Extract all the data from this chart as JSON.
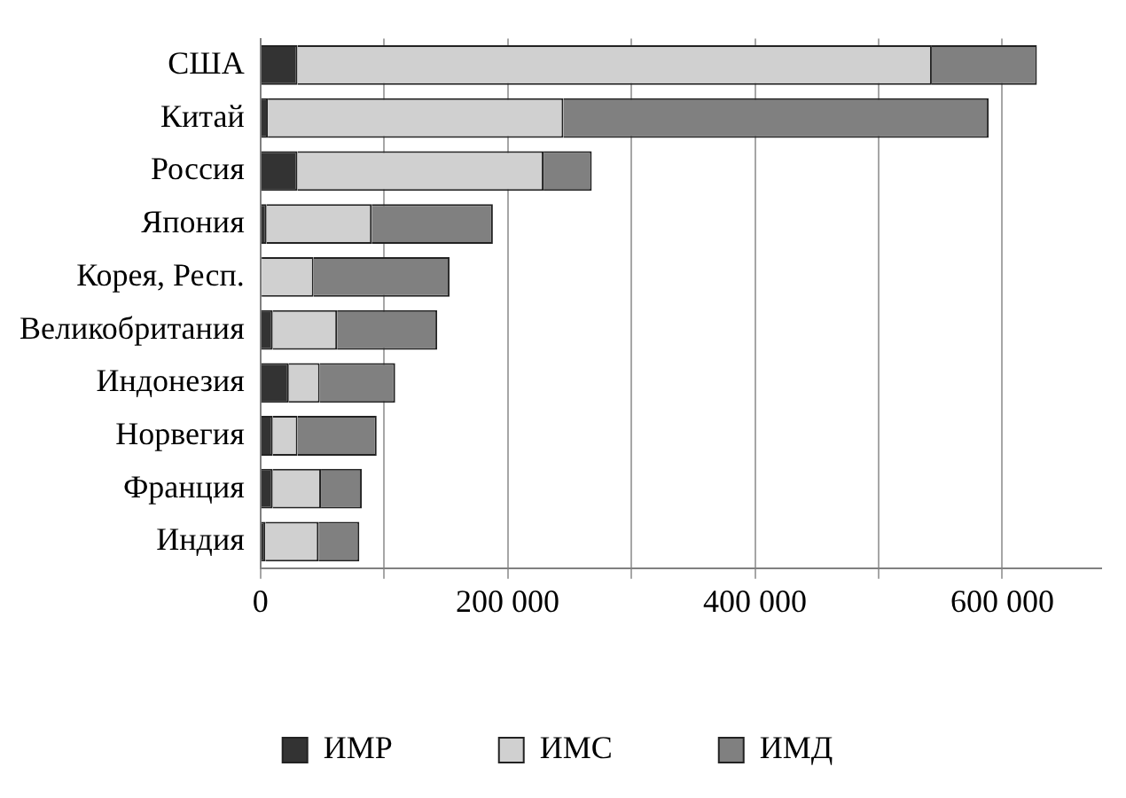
{
  "chart_data": {
    "type": "bar",
    "orientation": "horizontal",
    "stacked": true,
    "categories": [
      "США",
      "Китай",
      "Россия",
      "Япония",
      "Корея, Респ.",
      "Великобритания",
      "Индонезия",
      "Норвегия",
      "Франция",
      "Индия"
    ],
    "series": [
      {
        "name": "ИМР",
        "color": "#333333",
        "values": [
          30000,
          6000,
          30000,
          5000,
          1000,
          10000,
          23000,
          10000,
          10000,
          4000
        ]
      },
      {
        "name": "ИМС",
        "color": "#d0d0d0",
        "values": [
          513000,
          239000,
          199000,
          85000,
          42000,
          52000,
          25000,
          20000,
          39000,
          43000
        ]
      },
      {
        "name": "ИМД",
        "color": "#808080",
        "values": [
          85000,
          344000,
          39000,
          98000,
          110000,
          81000,
          61000,
          64000,
          33000,
          33000
        ]
      }
    ],
    "xlim": [
      0,
      680000
    ],
    "xticks": [
      0,
      {
        "value": 100000,
        "label": null
      },
      {
        "value": 200000,
        "label": "200 000"
      },
      {
        "value": 300000,
        "label": null
      },
      {
        "value": 400000,
        "label": "400 000"
      },
      {
        "value": 500000,
        "label": null
      },
      {
        "value": 600000,
        "label": "600 000"
      }
    ],
    "grid": "x",
    "legend": "bottom"
  }
}
